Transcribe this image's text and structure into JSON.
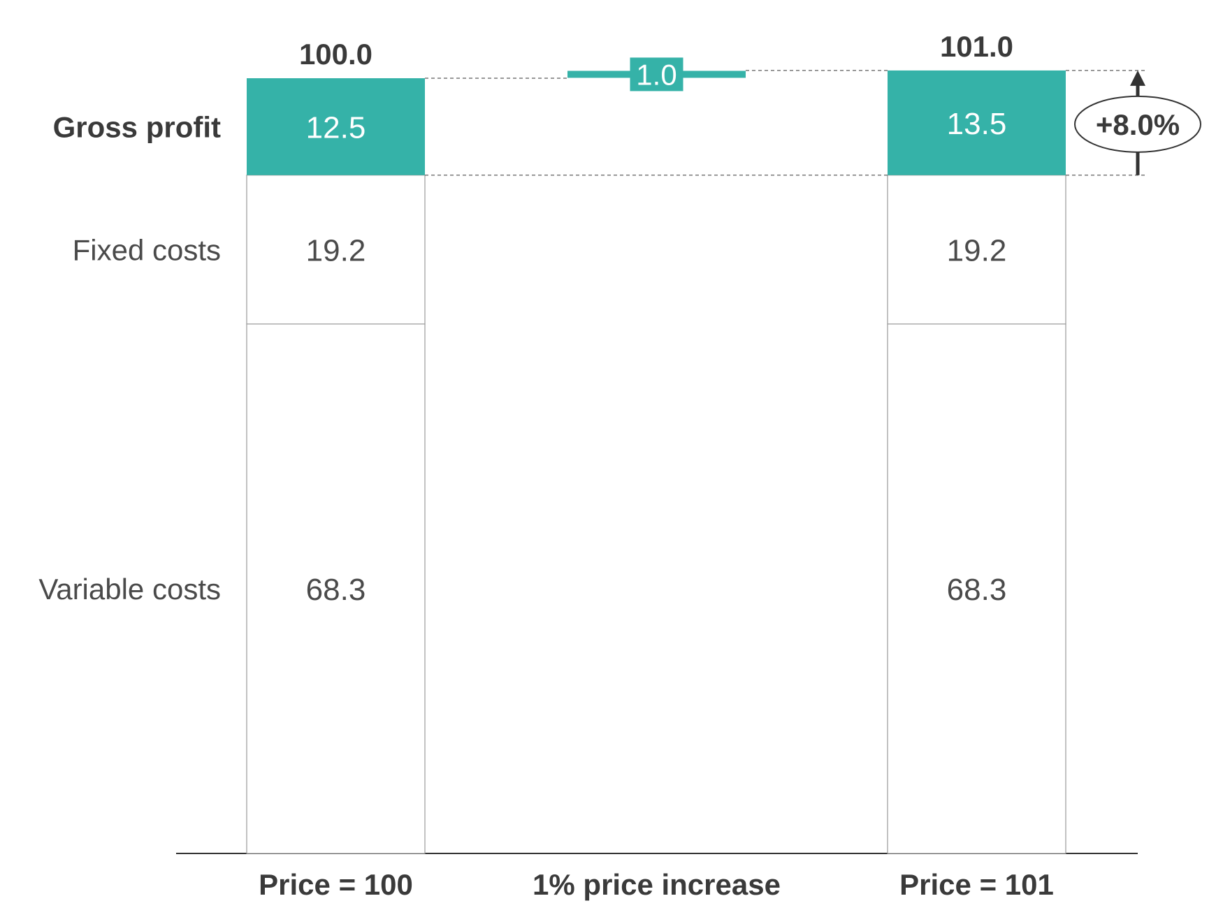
{
  "chart_data": {
    "type": "bar",
    "subtype": "stacked-waterfall",
    "categories": [
      "Price = 100",
      "1% price increase",
      "Price = 101"
    ],
    "segments": [
      "Variable costs",
      "Fixed costs",
      "Gross profit"
    ],
    "stacks": [
      {
        "category": "Price = 100",
        "total_label": "100.0",
        "values": [
          68.3,
          19.2,
          12.5
        ],
        "value_labels": [
          "68.3",
          "19.2",
          "12.5"
        ]
      },
      {
        "category": "Price = 101",
        "total_label": "101.0",
        "values": [
          68.3,
          19.2,
          13.5
        ],
        "value_labels": [
          "68.3",
          "19.2",
          "13.5"
        ]
      }
    ],
    "delta": {
      "category": "1% price increase",
      "base": 100.0,
      "value": 1.0,
      "label": "1.0"
    },
    "annotation": {
      "label": "+8.0%"
    },
    "ylim": [
      0,
      101
    ],
    "colors": {
      "profit": "#35b2a8",
      "cost_fill": "#ffffff",
      "border": "#9a9a9a",
      "text": "#4a4a4a",
      "axis": "#333333"
    },
    "grid": false,
    "legend": "none"
  }
}
